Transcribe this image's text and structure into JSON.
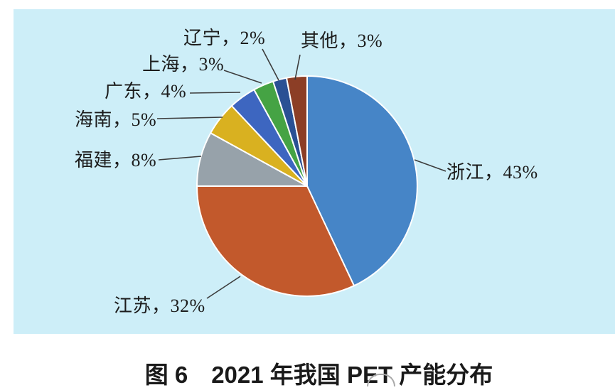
{
  "caption": "图 6　2021 年我国 PET 产能分布",
  "chart_data": {
    "type": "pie",
    "title": "2021 年我国 PET 产能分布",
    "categories": [
      "浙江",
      "江苏",
      "福建",
      "海南",
      "广东",
      "上海",
      "辽宁",
      "其他"
    ],
    "values": [
      43,
      32,
      8,
      5,
      4,
      3,
      2,
      3
    ],
    "unit": "%",
    "labels": [
      "浙江，43%",
      "江苏，32%",
      "福建，8%",
      "海南，5%",
      "广东，4%",
      "上海，3%",
      "辽宁，2%",
      "其他，3%"
    ],
    "colors": [
      "#4685c7",
      "#c2592c",
      "#97a2aa",
      "#d9b120",
      "#3d66c0",
      "#45a344",
      "#2a5094",
      "#8c3e26"
    ],
    "slice_border_color": "#ffffff",
    "leader_line_color": "#3c3c3c",
    "background": "#cdeef8",
    "start_angle_deg": 0,
    "direction": "clockwise",
    "legend_position": "none",
    "label_style": "leader-lines"
  }
}
